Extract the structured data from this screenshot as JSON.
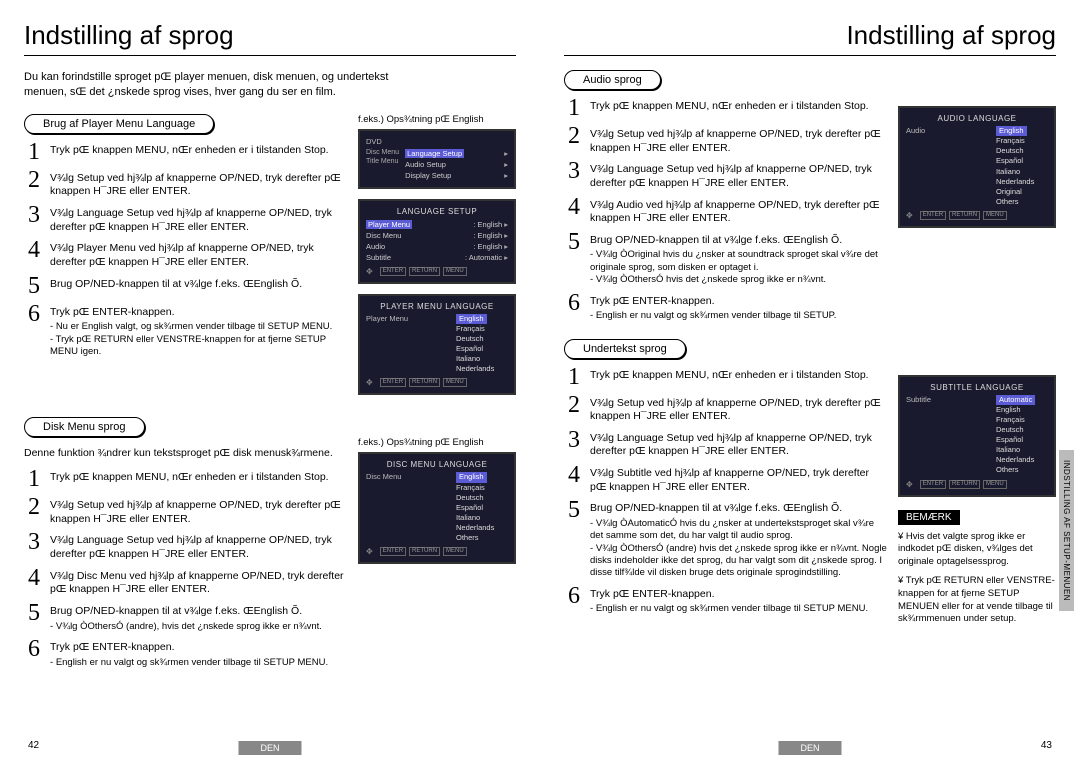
{
  "colors": {
    "osd_bg": "#1a1a2e",
    "osd_hl": "#5b5bd6",
    "footer_bg": "#888888",
    "sidetab_bg": "#bbbbbb"
  },
  "left": {
    "title": "Indstilling af sprog",
    "intro": "Du kan forindstille sproget pŒ player menuen, disk menuen, og undertekst menuen, sŒ det ¿nskede sprog vises, hver gang du ser en film.",
    "secA": {
      "pill": "Brug af Player Menu Language",
      "caption": "f.eks.) Ops¾tning pŒ English",
      "steps": [
        {
          "n": "1",
          "t": "Tryk pŒ knappen MENU, nŒr enheden er i tilstanden Stop."
        },
        {
          "n": "2",
          "t": "V¾lg Setup ved hj¾lp af knapperne OP/NED, tryk derefter pŒ knappen H¯JRE eller ENTER."
        },
        {
          "n": "3",
          "t": "V¾lg Language Setup ved hj¾lp af knapperne OP/NED, tryk derefter pŒ knappen H¯JRE eller ENTER."
        },
        {
          "n": "4",
          "t": "V¾lg Player Menu ved hj¾lp af knapperne OP/NED, tryk derefter pŒ knappen H¯JRE eller ENTER."
        },
        {
          "n": "5",
          "t": "Brug OP/NED-knappen til at v¾lge f.eks. ŒEnglish Õ."
        },
        {
          "n": "6",
          "t": "Tryk pŒ ENTER-knappen.",
          "subs": [
            "Nu er English valgt, og sk¾rmen vender tilbage til SETUP MENU.",
            "Tryk pŒ RETURN eller VENSTRE-knappen for at fjerne SETUP MENU igen."
          ]
        }
      ]
    },
    "secB": {
      "pill": "Disk Menu sprog",
      "intro": "Denne funktion ¾ndrer kun tekstsproget pŒ disk menusk¾rmene.",
      "caption": "f.eks.) Ops¾tning pŒ English",
      "steps": [
        {
          "n": "1",
          "t": "Tryk pŒ knappen MENU, nŒr enheden er i tilstanden Stop."
        },
        {
          "n": "2",
          "t": "V¾lg Setup ved hj¾lp af knapperne OP/NED, tryk derefter pŒ knappen H¯JRE eller ENTER."
        },
        {
          "n": "3",
          "t": "V¾lg Language Setup ved hj¾lp af knapperne OP/NED, tryk derefter pŒ knappen H¯JRE eller ENTER."
        },
        {
          "n": "4",
          "t": "V¾lg Disc Menu ved hj¾lp af knapperne OP/NED, tryk derefter pŒ knappen H¯JRE eller ENTER."
        },
        {
          "n": "5",
          "t": "Brug OP/NED-knappen til at v¾lge f.eks. ŒEnglish Õ.",
          "subs": [
            "V¾lg ÒOthersÓ (andre), hvis det ¿nskede sprog ikke er n¾vnt."
          ]
        },
        {
          "n": "6",
          "t": "Tryk pŒ ENTER-knappen.",
          "subs": [
            "English er nu valgt og sk¾rmen vender tilbage til SETUP MENU."
          ]
        }
      ]
    },
    "pagenum": "42",
    "lang": "DEN"
  },
  "right": {
    "title": "Indstilling af sprog",
    "secA": {
      "pill": "Audio sprog",
      "steps": [
        {
          "n": "1",
          "t": "Tryk pŒ knappen MENU, nŒr enheden er i tilstanden Stop."
        },
        {
          "n": "2",
          "t": "V¾lg Setup ved hj¾lp af knapperne OP/NED, tryk derefter pŒ knappen H¯JRE eller ENTER."
        },
        {
          "n": "3",
          "t": "V¾lg Language Setup ved hj¾lp af knapperne OP/NED, tryk derefter pŒ knappen H¯JRE eller ENTER."
        },
        {
          "n": "4",
          "t": "V¾lg Audio ved hj¾lp af knapperne OP/NED, tryk derefter pŒ knappen H¯JRE eller ENTER."
        },
        {
          "n": "5",
          "t": "Brug OP/NED-knappen til at v¾lge f.eks. ŒEnglish Õ.",
          "subs": [
            "V¾lg ÒOriginal hvis du ¿nsker at soundtrack sproget skal v¾re det originale sprog, som disken er optaget i.",
            "V¾lg ÒOthersÓ hvis det ¿nskede sprog ikke er n¾vnt."
          ]
        },
        {
          "n": "6",
          "t": "Tryk pŒ ENTER-knappen.",
          "subs": [
            "English er nu valgt og sk¾rmen vender tilbage til SETUP."
          ]
        }
      ]
    },
    "secB": {
      "pill": "Undertekst sprog",
      "steps": [
        {
          "n": "1",
          "t": "Tryk pŒ knappen MENU, nŒr enheden er i tilstanden Stop."
        },
        {
          "n": "2",
          "t": "V¾lg Setup ved hj¾lp af knapperne OP/NED, tryk derefter pŒ knappen H¯JRE eller ENTER."
        },
        {
          "n": "3",
          "t": "V¾lg Language Setup ved hj¾lp af knapperne OP/NED, tryk derefter pŒ knappen H¯JRE eller ENTER."
        },
        {
          "n": "4",
          "t": "V¾lg Subtitle ved hj¾lp af knapperne OP/NED, tryk derefter pŒ knappen H¯JRE eller ENTER."
        },
        {
          "n": "5",
          "t": "Brug OP/NED-knappen til at v¾lge f.eks. ŒEnglish Õ.",
          "subs": [
            "V¾lg ÒAutomaticÓ hvis du ¿nsker at undertekstsproget skal v¾re det samme som det, du har valgt til audio sprog.",
            "V¾lg ÒOthersÓ (andre) hvis det ¿nskede sprog ikke er n¾vnt. Nogle disks indeholder ikke det sprog, du har valgt som dit ¿nskede sprog. I disse tilf¾lde vil disken bruge dets originale sprogindstilling."
          ]
        },
        {
          "n": "6",
          "t": "Tryk pŒ ENTER-knappen.",
          "subs": [
            "English er nu valgt og sk¾rmen vender tilbage til SETUP MENU."
          ]
        }
      ]
    },
    "bemark": {
      "title": "BEMÆRK",
      "p1": "¥ Hvis det valgte sprog ikke er indkodet pŒ disken, v¾lges det originale optagelsessprog.",
      "p2": "¥ Tryk pŒ RETURN eller VENSTRE-knappen for at fjerne SETUP MENUEN eller for at vende tilbage til sk¾rmmenuen under setup."
    },
    "sidetab": "INDSTILLING AF\nSETUP-MENUEN",
    "pagenum": "43",
    "lang": "DEN"
  },
  "osd": {
    "dvd": "DVD",
    "setup1": {
      "rows": [
        {
          "l": "Language Setup",
          "hl": true
        },
        {
          "l": "Audio Setup"
        },
        {
          "l": "Display Setup"
        }
      ],
      "left": "Disc Menu\nTitle Menu"
    },
    "lang_setup": {
      "title": "LANGUAGE SETUP",
      "rows": [
        {
          "l": "Player Menu",
          "v": ": English",
          "hl": true
        },
        {
          "l": "Disc Menu",
          "v": ": English"
        },
        {
          "l": "Audio",
          "v": ": English"
        },
        {
          "l": "Subtitle",
          "v": ": Automatic"
        }
      ]
    },
    "player_lang": {
      "title": "PLAYER MENU LANGUAGE",
      "left": "Player Menu",
      "items": [
        "English",
        "Français",
        "Deutsch",
        "Español",
        "Italiano",
        "Nederlands"
      ],
      "sel": 0
    },
    "disc_lang": {
      "title": "DISC MENU LANGUAGE",
      "left": "Disc Menu",
      "items": [
        "English",
        "Français",
        "Deutsch",
        "Español",
        "Italiano",
        "Nederlands",
        "Others"
      ],
      "sel": 0
    },
    "audio_lang": {
      "title": "AUDIO LANGUAGE",
      "left": "Audio",
      "items": [
        "English",
        "Français",
        "Deutsch",
        "Español",
        "Italiano",
        "Nederlands",
        "Original",
        "Others"
      ],
      "sel": 0
    },
    "sub_lang": {
      "title": "SUBTITLE LANGUAGE",
      "left": "Subtitle",
      "items": [
        "Automatic",
        "English",
        "Français",
        "Deutsch",
        "Español",
        "Italiano",
        "Nederlands",
        "Others"
      ],
      "sel": 0
    },
    "buttons": [
      "ENTER",
      "RETURN",
      "MENU"
    ]
  }
}
